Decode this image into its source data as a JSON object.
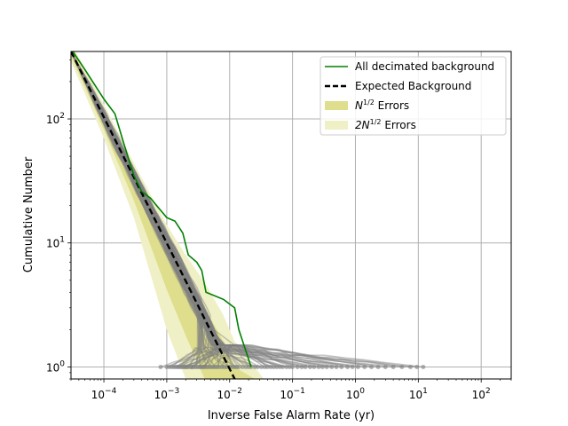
{
  "chart_data": {
    "type": "line",
    "title": "",
    "xlabel": "Inverse False Alarm Rate (yr)",
    "ylabel": "Cumulative Number",
    "xscale": "log",
    "yscale": "log",
    "xlim": [
      3e-05,
      300
    ],
    "ylim": [
      0.8,
      350
    ],
    "grid": true,
    "legend_position": "top-right",
    "x_tick_values": [
      0.0001,
      0.001,
      0.01,
      0.1,
      1,
      10,
      100
    ],
    "x_tick_bases": [
      "10",
      "10",
      "10",
      "10",
      "10",
      "10",
      "10"
    ],
    "x_tick_exponents": [
      "−4",
      "−3",
      "−2",
      "−1",
      "0",
      "1",
      "2"
    ],
    "y_tick_values": [
      1,
      10,
      100
    ],
    "y_tick_bases": [
      "10",
      "10",
      "10"
    ],
    "y_tick_exponents": [
      "0",
      "1",
      "2"
    ],
    "legend": [
      {
        "label_main": "All decimated background",
        "label_sup": "",
        "label_tail": "",
        "kind": "line",
        "color": "#008000",
        "dashed": false
      },
      {
        "label_main": "Expected Background",
        "label_sup": "",
        "label_tail": "",
        "kind": "line",
        "color": "#000000",
        "dashed": true
      },
      {
        "label_main": "N",
        "label_sup": "1/2",
        "label_tail": " Errors",
        "kind": "patch",
        "color": "#dede8c"
      },
      {
        "label_main": "2N",
        "label_sup": "1/2",
        "label_tail": " Errors",
        "kind": "patch",
        "color": "#f0f0c6"
      }
    ],
    "series": [
      {
        "name": "All decimated background",
        "color": "#008000",
        "x": [
          3.2e-05,
          5e-05,
          0.0001,
          0.00015,
          0.00021,
          0.0003,
          0.0004,
          0.00055,
          0.00075,
          0.001,
          0.00135,
          0.0018,
          0.0022,
          0.003,
          0.0036,
          0.0042,
          0.008,
          0.012,
          0.014,
          0.022
        ],
        "y": [
          350,
          250,
          145,
          110,
          62,
          35,
          26,
          23,
          19,
          16,
          15,
          12,
          8,
          7,
          6,
          4,
          3.5,
          3,
          2,
          1
        ]
      },
      {
        "name": "Expected Background",
        "color": "#000000",
        "x": [
          3e-05,
          0.012
        ],
        "y": [
          350,
          0.8
        ]
      }
    ],
    "band_1sigma": {
      "x": [
        3e-05,
        0.0001,
        0.0003,
        0.001,
        0.002,
        0.004,
        0.008,
        0.012,
        0.025
      ],
      "lower": [
        320,
        82,
        22,
        4.2,
        1.8,
        0.8,
        0.8,
        0.8,
        0.8
      ],
      "upper": [
        380,
        115,
        36,
        10,
        5.5,
        3,
        1.6,
        1,
        0.8
      ]
    },
    "band_2sigma": {
      "x": [
        3e-05,
        0.0001,
        0.0003,
        0.001,
        0.002,
        0.004,
        0.008,
        0.012,
        0.035
      ],
      "lower": [
        290,
        70,
        16,
        2,
        0.8,
        0.8,
        0.8,
        0.8,
        0.8
      ],
      "upper": [
        410,
        132,
        44,
        14,
        8,
        4.8,
        2.6,
        1.6,
        0.8
      ]
    },
    "decimated_background_endpoints": [
      0.0008,
      0.001,
      0.0011,
      0.0012,
      0.0013,
      0.0014,
      0.0015,
      0.0016,
      0.0017,
      0.0018,
      0.0019,
      0.002,
      0.0021,
      0.0022,
      0.0024,
      0.0025,
      0.0026,
      0.0028,
      0.003,
      0.0032,
      0.0034,
      0.0036,
      0.0038,
      0.004,
      0.0043,
      0.0046,
      0.005,
      0.0054,
      0.0058,
      0.0063,
      0.0068,
      0.0075,
      0.0082,
      0.009,
      0.01,
      0.011,
      0.012,
      0.013,
      0.014,
      0.016,
      0.018,
      0.02,
      0.022,
      0.025,
      0.028,
      0.032,
      0.036,
      0.04,
      0.045,
      0.05,
      0.056,
      0.063,
      0.07,
      0.08,
      0.09,
      0.1,
      0.12,
      0.14,
      0.16,
      0.19,
      0.22,
      0.26,
      0.3,
      0.35,
      0.42,
      0.5,
      0.6,
      0.75,
      0.9,
      1.1,
      1.4,
      1.8,
      2.3,
      3,
      4,
      5.5,
      7.5,
      9.5,
      12
    ]
  }
}
